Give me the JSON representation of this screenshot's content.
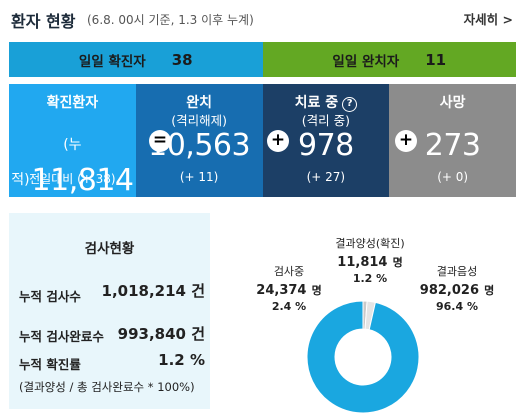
{
  "header": {
    "title": "환자 현황",
    "subtitle": "(6.8. 00시 기준, 1.3 이후 누계)",
    "detail_link": "자세히 >"
  },
  "daily": {
    "confirmed": {
      "label": "일일 확진자",
      "value": "38"
    },
    "released": {
      "label": "일일 완치자",
      "value": "11"
    }
  },
  "stats": {
    "confirmed": {
      "title": "확진환자",
      "prefix": "(누적)",
      "value": "11,814",
      "diff": "전일대비 (+ 38)"
    },
    "released": {
      "title": "완치",
      "subtitle": "(격리해제)",
      "value": "10,563",
      "diff": "(+ 11)"
    },
    "treatment": {
      "title": "치료 중",
      "help": "?",
      "subtitle": "(격리 중)",
      "value": "978",
      "diff": "(+ 27)"
    },
    "deaths": {
      "title": "사망",
      "value": "273",
      "diff": "(+ 0)"
    },
    "ops": {
      "equals": "=",
      "plus1": "+",
      "plus2": "+"
    }
  },
  "tests": {
    "title": "검사현황",
    "rows": [
      {
        "label": "누적 검사수",
        "value": "1,018,214 건"
      },
      {
        "label": "누적 검사완료수",
        "value": "993,840 건"
      },
      {
        "label": "누적 확진률",
        "value": "1.2 %"
      }
    ],
    "note": "(결과양성 / 총 검사완료수 * 100%)"
  },
  "chart_data": {
    "type": "pie",
    "categories": [
      "결과양성(확진)",
      "검사중",
      "결과음성"
    ],
    "values": [
      11814,
      24374,
      982026
    ],
    "percentages": [
      1.2,
      2.4,
      96.4
    ],
    "colors": [
      "#c9c9c9",
      "#e5e5e5",
      "#1aa7e0"
    ],
    "labels": {
      "positive": {
        "title": "결과양성(확진)",
        "count": "11,814",
        "unit": "명",
        "pct": "1.2 %"
      },
      "testing": {
        "title": "검사중",
        "count": "24,374",
        "unit": "명",
        "pct": "2.4 %"
      },
      "negative": {
        "title": "결과음성",
        "count": "982,026",
        "unit": "명",
        "pct": "96.4 %"
      }
    }
  }
}
